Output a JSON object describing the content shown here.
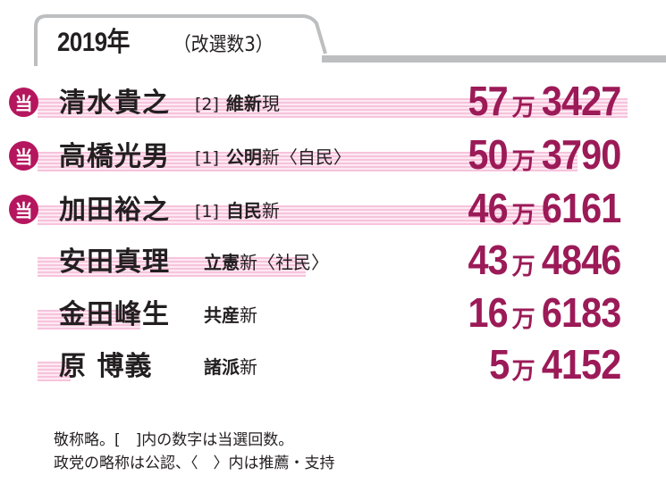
{
  "header": {
    "year": "2019年",
    "seats": "（改選数3）"
  },
  "candidates": [
    {
      "elected": "当",
      "name": "清水貴之",
      "wins": "[2]",
      "party": "維新",
      "status": "現",
      "support": "",
      "votes_man": "57",
      "man": "万",
      "votes_rest": "3427",
      "votes_total": 573427
    },
    {
      "elected": "当",
      "name": "高橋光男",
      "wins": "[1]",
      "party": "公明",
      "status": "新",
      "support": "〈自民〉",
      "votes_man": "50",
      "man": "万",
      "votes_rest": "3790",
      "votes_total": 503790
    },
    {
      "elected": "当",
      "name": "加田裕之",
      "wins": "[1]",
      "party": "自民",
      "status": "新",
      "support": "",
      "votes_man": "46",
      "man": "万",
      "votes_rest": "6161",
      "votes_total": 466161
    },
    {
      "elected": "",
      "name": "安田真理",
      "wins": "",
      "party": "立憲",
      "status": "新",
      "support": "〈社民〉",
      "votes_man": "43",
      "man": "万",
      "votes_rest": "4846",
      "votes_total": 434846
    },
    {
      "elected": "",
      "name": "金田峰生",
      "wins": "",
      "party": "共産",
      "status": "新",
      "support": "",
      "votes_man": "16",
      "man": "万",
      "votes_rest": "6183",
      "votes_total": 166183
    },
    {
      "elected": "",
      "name": "原  博義",
      "wins": "",
      "party": "諸派",
      "status": "新",
      "support": "",
      "votes_man": "5",
      "man": "万",
      "votes_rest": "4152",
      "votes_total": 54152
    }
  ],
  "footnote": {
    "line1": "敬称略。[　]内の数字は当選回数。",
    "line2": "政党の略称は公認、〈　〉内は推薦・支持"
  },
  "colors": {
    "accent": "#9b1a57",
    "elected_badge": "#b5165e",
    "bar": "#f7c3dc",
    "rule": "#bcbec0"
  }
}
